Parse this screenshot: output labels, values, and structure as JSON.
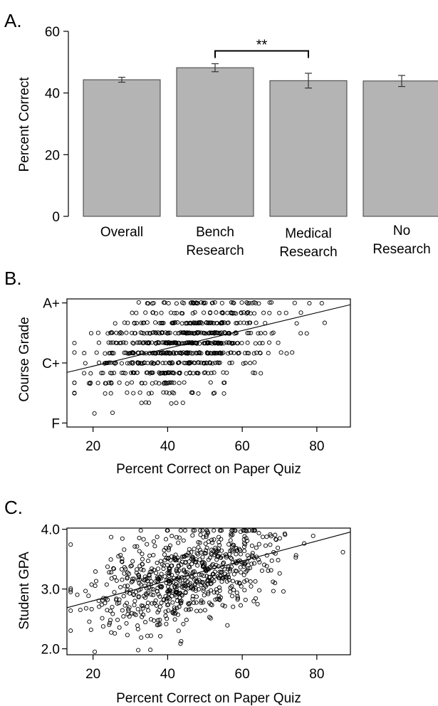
{
  "chart_data": [
    {
      "panel": "A.",
      "type": "bar",
      "ylabel": "Percent Correct",
      "ylim": [
        0,
        60
      ],
      "yticks": [
        0,
        20,
        40,
        60
      ],
      "categories": [
        [
          "Overall"
        ],
        [
          "Bench",
          "Research"
        ],
        [
          "Medical",
          "Research"
        ],
        [
          "No",
          "Research"
        ]
      ],
      "values": [
        44.3,
        48.2,
        44.0,
        43.9
      ],
      "errors": [
        0.8,
        1.3,
        2.4,
        1.8
      ],
      "significance": {
        "from": 1,
        "to": 2,
        "y": 55.5,
        "label": "**"
      }
    },
    {
      "panel": "B.",
      "type": "scatter",
      "xlabel": "Percent Correct on Paper Quiz",
      "ylabel": "Course Grade",
      "xlim": [
        13,
        89
      ],
      "ylim": [
        -0.2,
        6.2
      ],
      "xticks": [
        20,
        40,
        60,
        80
      ],
      "ytick_labels": [
        {
          "v": 0,
          "label": "F"
        },
        {
          "v": 3,
          "label": "C+"
        },
        {
          "v": 6,
          "label": "A+"
        }
      ],
      "fit": {
        "slope": 0.0445,
        "intercept": 1.95
      },
      "n_points": 700
    },
    {
      "panel": "C.",
      "type": "scatter",
      "xlabel": "Percent Correct on Paper Quiz",
      "ylabel": "Student GPA",
      "xlim": [
        13,
        89
      ],
      "ylim": [
        1.9,
        4.02
      ],
      "yticks": [
        {
          "v": 2.0,
          "label": "2.0"
        },
        {
          "v": 3.0,
          "label": "3.0"
        },
        {
          "v": 4.0,
          "label": "4.0"
        }
      ],
      "xticks": [
        20,
        40,
        60,
        80
      ],
      "fit": {
        "slope": 0.01667,
        "intercept": 2.47
      },
      "n_points": 750
    }
  ]
}
